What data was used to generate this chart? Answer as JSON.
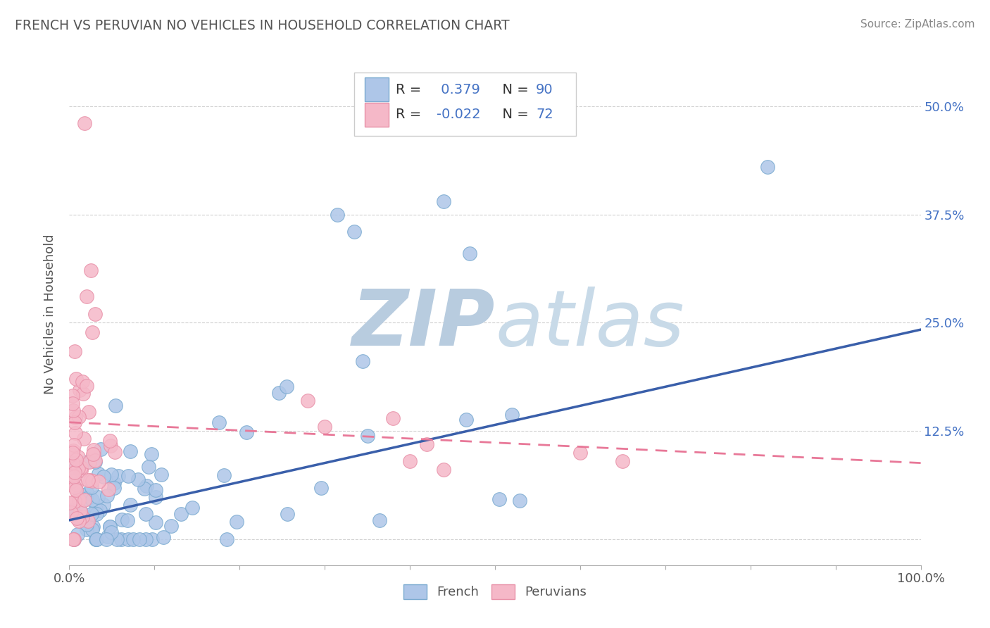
{
  "title": "FRENCH VS PERUVIAN NO VEHICLES IN HOUSEHOLD CORRELATION CHART",
  "source": "Source: ZipAtlas.com",
  "ylabel": "No Vehicles in Household",
  "xlim": [
    0.0,
    1.0
  ],
  "ylim": [
    -0.03,
    0.55
  ],
  "french_R": 0.379,
  "french_N": 90,
  "peruvian_R": -0.022,
  "peruvian_N": 72,
  "french_fill_color": "#aec6e8",
  "french_edge_color": "#7aaad0",
  "peruvian_fill_color": "#f5b8c8",
  "peruvian_edge_color": "#e890a8",
  "blue_line_color": "#3a5faa",
  "pink_line_color": "#e87898",
  "legend_label_color": "#333333",
  "legend_value_color": "#4472c4",
  "watermark_color": "#d0dff0",
  "title_color": "#555555",
  "source_color": "#888888",
  "background_color": "#ffffff",
  "grid_color": "#cccccc",
  "ytick_color": "#4472c4",
  "xtick_color": "#555555",
  "french_line_x0": 0.0,
  "french_line_y0": 0.022,
  "french_line_x1": 1.0,
  "french_line_y1": 0.242,
  "peruvian_line_x0": 0.0,
  "peruvian_line_y0": 0.135,
  "peruvian_line_x1": 1.0,
  "peruvian_line_y1": 0.088
}
